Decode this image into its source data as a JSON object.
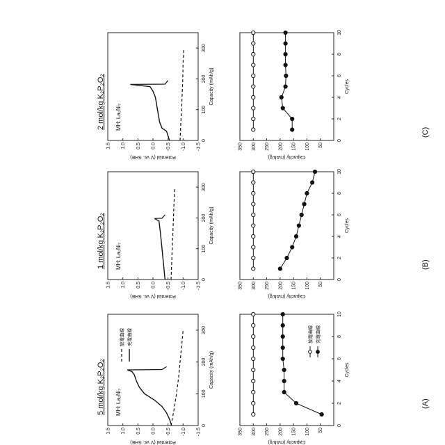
{
  "panels": [
    {
      "letter": "(A)",
      "title": "5 mol/kg K₂P₂O₂",
      "potential": {
        "note": "MH: La₂Ni₇",
        "ylabel": "Potential (V vs. SHE)",
        "xlabel": "Capacity (mAh/g)",
        "xticks": [
          0,
          100,
          200,
          300
        ],
        "yticks": [
          1.5,
          1.0,
          0.5,
          0.0,
          -0.5,
          -1.0,
          -1.5
        ],
        "ytick_labels": [
          "1.5",
          "1.0",
          "0.5",
          "0.0",
          "-0.5",
          "-1.0",
          "-1.5"
        ],
        "xlim": [
          0,
          350
        ],
        "ylim": [
          -1.5,
          1.5
        ],
        "legend": [
          "放電曲線",
          "充電曲線"
        ],
        "charge": {
          "x": [
            0,
            20,
            40,
            60,
            80,
            100,
            120,
            140,
            160,
            170,
            175
          ],
          "y": [
            -0.62,
            -0.55,
            -0.45,
            -0.3,
            -0.05,
            0.28,
            0.45,
            0.55,
            0.62,
            0.7,
            0.85
          ]
        },
        "discharge": {
          "x": [
            0,
            50,
            100,
            150,
            200,
            250,
            280,
            300
          ],
          "y": [
            -0.6,
            -0.7,
            -0.78,
            -0.85,
            -0.9,
            -0.95,
            -0.98,
            -1.0
          ]
        },
        "spike": {
          "x": [
            175,
            176,
            185
          ],
          "y": [
            0.85,
            -0.3,
            -0.45
          ]
        }
      },
      "cycle": {
        "ylabel": "Capacity (mAh/g)",
        "xlabel": "Cycles",
        "xticks": [
          0,
          2,
          4,
          6,
          8,
          10
        ],
        "yticks": [
          0,
          50,
          100,
          150,
          200,
          250,
          300,
          350
        ],
        "ytick_labels": [
          "",
          "50",
          "100",
          "150",
          "200",
          "250",
          "300",
          "350"
        ],
        "xlim": [
          0,
          10
        ],
        "ylim": [
          0,
          350
        ],
        "legend": [
          "放電曲線",
          "充電曲線"
        ],
        "open": {
          "x": [
            1,
            2,
            3,
            4,
            5,
            6,
            7,
            8,
            9,
            10
          ],
          "y": [
            300,
            300,
            300,
            300,
            300,
            300,
            300,
            300,
            300,
            300
          ]
        },
        "filled": {
          "x": [
            1,
            2,
            3,
            4,
            5,
            6,
            7,
            8,
            9,
            10
          ],
          "y": [
            45,
            140,
            185,
            185,
            185,
            190,
            190,
            190,
            190,
            190
          ]
        }
      }
    },
    {
      "letter": "(B)",
      "title": "1 mol/kg K₂P₂O₂",
      "potential": {
        "note": "MH: La₂Ni₇",
        "ylabel": "Potential (V vs. SHE)",
        "xlabel": "Capacity (mAh/g)",
        "xticks": [
          0,
          100,
          200,
          300
        ],
        "yticks": [
          1.5,
          1.0,
          0.5,
          0.0,
          -0.5,
          -1.0,
          -1.5
        ],
        "ytick_labels": [
          "1.5",
          "1.0",
          "0.5",
          "0.0",
          "-0.5",
          "-1.0",
          "-1.5"
        ],
        "xlim": [
          0,
          350
        ],
        "ylim": [
          -1.5,
          1.5
        ],
        "legend": [],
        "charge": {
          "x": [
            0,
            50,
            100,
            150,
            190,
            198
          ],
          "y": [
            -0.4,
            -0.35,
            -0.3,
            -0.25,
            -0.2,
            -0.05
          ]
        },
        "discharge": {
          "x": [
            0,
            50,
            100,
            150,
            200,
            250,
            300
          ],
          "y": [
            -0.6,
            -0.62,
            -0.64,
            -0.66,
            -0.68,
            -0.7,
            -0.72
          ]
        },
        "spike": {
          "x": [
            198,
            199,
            210
          ],
          "y": [
            -0.05,
            -0.3,
            -0.4
          ]
        }
      },
      "cycle": {
        "ylabel": "Capacity (mAh/g)",
        "xlabel": "Cycles",
        "xticks": [
          0,
          2,
          4,
          6,
          8,
          10
        ],
        "yticks": [
          0,
          50,
          100,
          150,
          200,
          250,
          300,
          350
        ],
        "ytick_labels": [
          "",
          "50",
          "100",
          "150",
          "200",
          "250",
          "300",
          "350"
        ],
        "xlim": [
          0,
          10
        ],
        "ylim": [
          0,
          350
        ],
        "legend": [],
        "open": {
          "x": [
            1,
            2,
            3,
            4,
            5,
            6,
            7,
            8,
            9,
            10
          ],
          "y": [
            300,
            300,
            300,
            300,
            300,
            300,
            300,
            300,
            300,
            300
          ]
        },
        "filled": {
          "x": [
            1,
            2,
            3,
            4,
            5,
            6,
            7,
            8,
            9,
            10
          ],
          "y": [
            200,
            175,
            155,
            140,
            130,
            120,
            110,
            100,
            80,
            70
          ]
        }
      }
    },
    {
      "letter": "(C)",
      "title": "2 mol/kg K₂P₂O₂",
      "potential": {
        "note": "MH: La₂Ni₇",
        "ylabel": "Potential (V vs. SHE)",
        "xlabel": "Capacity (mAh/g)",
        "xticks": [
          0,
          100,
          200,
          300
        ],
        "yticks": [
          1.5,
          1.0,
          0.5,
          0.0,
          -0.5,
          -1.0,
          -1.5
        ],
        "ytick_labels": [
          "1.5",
          "1.0",
          "0.5",
          "0.0",
          "-0.5",
          "-1.0",
          "-1.5"
        ],
        "xlim": [
          0,
          350
        ],
        "ylim": [
          -1.5,
          1.5
        ],
        "legend": [],
        "charge": {
          "x": [
            0,
            30,
            40,
            60,
            100,
            140,
            160,
            175,
            182
          ],
          "y": [
            -0.55,
            -0.45,
            -0.3,
            -0.22,
            -0.15,
            -0.08,
            0.0,
            0.1,
            0.75
          ]
        },
        "discharge": {
          "x": [
            0,
            50,
            100,
            150,
            200,
            250,
            300
          ],
          "y": [
            -0.9,
            -0.92,
            -0.95,
            -0.97,
            -0.99,
            -1.0,
            -1.02
          ]
        },
        "spike": {
          "x": [
            182,
            183,
            195
          ],
          "y": [
            0.75,
            -0.4,
            -0.5
          ]
        }
      },
      "cycle": {
        "ylabel": "Capacity (mAh/g)",
        "xlabel": "Cycles",
        "xticks": [
          0,
          2,
          4,
          6,
          8,
          10
        ],
        "yticks": [
          0,
          50,
          100,
          150,
          200,
          250,
          300,
          350
        ],
        "ytick_labels": [
          "",
          "50",
          "100",
          "150",
          "200",
          "250",
          "300",
          "350"
        ],
        "xlim": [
          0,
          10
        ],
        "ylim": [
          0,
          350
        ],
        "legend": [],
        "open": {
          "x": [
            1,
            2,
            3,
            4,
            5,
            6,
            7,
            8,
            9,
            10
          ],
          "y": [
            300,
            300,
            300,
            300,
            300,
            300,
            300,
            300,
            300,
            300
          ]
        },
        "filled": {
          "x": [
            1,
            2,
            3,
            4,
            5,
            6,
            7,
            8,
            9,
            10
          ],
          "y": [
            155,
            155,
            190,
            195,
            180,
            178,
            180,
            180,
            180,
            180
          ]
        }
      }
    }
  ],
  "chart_data": [
    {
      "type": "line",
      "panel": "(A)",
      "title": "5 mol/kg K₂P₂O₂",
      "xlabel": "Capacity (mAh/g)",
      "ylabel": "Potential (V vs. SHE)",
      "xlim": [
        0,
        350
      ],
      "ylim": [
        -1.5,
        1.5
      ],
      "series": [
        {
          "name": "充電曲線",
          "x": [
            0,
            20,
            40,
            60,
            80,
            100,
            120,
            140,
            160,
            170,
            175
          ],
          "y": [
            -0.62,
            -0.55,
            -0.45,
            -0.3,
            -0.05,
            0.28,
            0.45,
            0.55,
            0.62,
            0.7,
            0.85
          ]
        },
        {
          "name": "放電曲線",
          "x": [
            0,
            50,
            100,
            150,
            200,
            250,
            280,
            300
          ],
          "y": [
            -0.6,
            -0.7,
            -0.78,
            -0.85,
            -0.9,
            -0.95,
            -0.98,
            -1.0
          ]
        }
      ]
    },
    {
      "type": "scatter",
      "panel": "(A)",
      "xlabel": "Cycles",
      "ylabel": "Capacity (mAh/g)",
      "xlim": [
        0,
        10
      ],
      "ylim": [
        0,
        350
      ],
      "series": [
        {
          "name": "放電曲線",
          "x": [
            1,
            2,
            3,
            4,
            5,
            6,
            7,
            8,
            9,
            10
          ],
          "y": [
            300,
            300,
            300,
            300,
            300,
            300,
            300,
            300,
            300,
            300
          ]
        },
        {
          "name": "充電曲線",
          "x": [
            1,
            2,
            3,
            4,
            5,
            6,
            7,
            8,
            9,
            10
          ],
          "y": [
            45,
            140,
            185,
            185,
            185,
            190,
            190,
            190,
            190,
            190
          ]
        }
      ]
    },
    {
      "type": "line",
      "panel": "(B)",
      "title": "1 mol/kg K₂P₂O₂",
      "xlabel": "Capacity (mAh/g)",
      "ylabel": "Potential (V vs. SHE)",
      "xlim": [
        0,
        350
      ],
      "ylim": [
        -1.5,
        1.5
      ],
      "series": [
        {
          "x": [
            0,
            50,
            100,
            150,
            190,
            198
          ],
          "y": [
            -0.4,
            -0.35,
            -0.3,
            -0.25,
            -0.2,
            -0.05
          ]
        },
        {
          "x": [
            0,
            50,
            100,
            150,
            200,
            250,
            300
          ],
          "y": [
            -0.6,
            -0.62,
            -0.64,
            -0.66,
            -0.68,
            -0.7,
            -0.72
          ]
        }
      ]
    },
    {
      "type": "scatter",
      "panel": "(B)",
      "xlabel": "Cycles",
      "ylabel": "Capacity (mAh/g)",
      "xlim": [
        0,
        10
      ],
      "ylim": [
        0,
        350
      ],
      "series": [
        {
          "x": [
            1,
            2,
            3,
            4,
            5,
            6,
            7,
            8,
            9,
            10
          ],
          "y": [
            300,
            300,
            300,
            300,
            300,
            300,
            300,
            300,
            300,
            300
          ]
        },
        {
          "x": [
            1,
            2,
            3,
            4,
            5,
            6,
            7,
            8,
            9,
            10
          ],
          "y": [
            200,
            175,
            155,
            140,
            130,
            120,
            110,
            100,
            80,
            70
          ]
        }
      ]
    },
    {
      "type": "line",
      "panel": "(C)",
      "title": "2 mol/kg K₂P₂O₂",
      "xlabel": "Capacity (mAh/g)",
      "ylabel": "Potential (V vs. SHE)",
      "xlim": [
        0,
        350
      ],
      "ylim": [
        -1.5,
        1.5
      ],
      "series": [
        {
          "x": [
            0,
            30,
            40,
            60,
            100,
            140,
            160,
            175,
            182
          ],
          "y": [
            -0.55,
            -0.45,
            -0.3,
            -0.22,
            -0.15,
            -0.08,
            0.0,
            0.1,
            0.75
          ]
        },
        {
          "x": [
            0,
            50,
            100,
            150,
            200,
            250,
            300
          ],
          "y": [
            -0.9,
            -0.92,
            -0.95,
            -0.97,
            -0.99,
            -1.0,
            -1.02
          ]
        }
      ]
    },
    {
      "type": "scatter",
      "panel": "(C)",
      "xlabel": "Cycles",
      "ylabel": "Capacity (mAh/g)",
      "xlim": [
        0,
        10
      ],
      "ylim": [
        0,
        350
      ],
      "series": [
        {
          "x": [
            1,
            2,
            3,
            4,
            5,
            6,
            7,
            8,
            9,
            10
          ],
          "y": [
            300,
            300,
            300,
            300,
            300,
            300,
            300,
            300,
            300,
            300
          ]
        },
        {
          "x": [
            1,
            2,
            3,
            4,
            5,
            6,
            7,
            8,
            9,
            10
          ],
          "y": [
            155,
            155,
            190,
            195,
            180,
            178,
            180,
            180,
            180,
            180
          ]
        }
      ]
    }
  ]
}
